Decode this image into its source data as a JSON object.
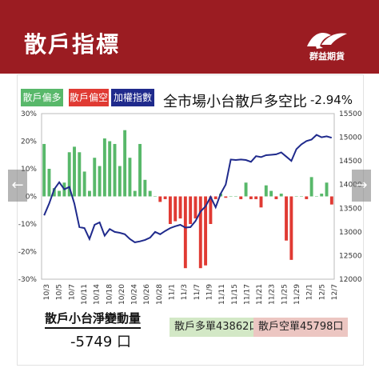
{
  "header": {
    "title": "散戶指標",
    "brand": "群益期貨"
  },
  "legend": {
    "long_label": "散戶偏多",
    "short_label": "散戶偏空",
    "index_label": "加權指數"
  },
  "chart_title": "全市場小台散戶多空比",
  "latest_ratio": "-2.94%",
  "net_change": {
    "label": "散戶小台淨變動量",
    "value": "-5749 口"
  },
  "positions": {
    "long": "散戶多單43862口",
    "short": "散戶空單45798口"
  },
  "colors": {
    "long": "#58b86a",
    "short": "#e03a33",
    "index": "#1f2a8c",
    "header": "#9b1c22"
  },
  "chart_data": {
    "type": "bar",
    "title": "全市場小台散戶多空比",
    "y_left": {
      "ylim": [
        -30,
        30
      ],
      "ticks": [
        "30%",
        "20%",
        "10%",
        "0%",
        "-10%",
        "-20%",
        "-30%"
      ]
    },
    "y_right": {
      "ylim": [
        12000,
        15500
      ],
      "ticks": [
        "15500",
        "15000",
        "14500",
        "14000",
        "13500",
        "13000",
        "12500",
        "12000"
      ]
    },
    "x_tick_labels": [
      "10/3",
      "10/5",
      "10/7",
      "10/11",
      "10/14",
      "10/18",
      "10/20",
      "10/24",
      "10/26",
      "10/28",
      "11/1",
      "11/3",
      "11/7",
      "11/9",
      "11/11",
      "11/15",
      "11/17",
      "11/21",
      "11/23",
      "11/25",
      "11/29",
      "12/1",
      "12/5",
      "12/7"
    ],
    "series": [
      {
        "name": "散戶偏多/散戶偏空",
        "type": "bar",
        "values": [
          19,
          10,
          3,
          2,
          5,
          16,
          18,
          16,
          9,
          2,
          14,
          11,
          21,
          20,
          19,
          11,
          24,
          14,
          2,
          19,
          6,
          2,
          0,
          -2,
          -1,
          -10,
          -9,
          -8,
          -26,
          -10,
          -8,
          -26,
          -25,
          -10,
          -1,
          1,
          -0.5,
          0,
          0,
          -1,
          5,
          -1,
          -1,
          -4,
          4,
          2,
          -1,
          1,
          -16,
          -23,
          0,
          0,
          -1,
          7,
          0,
          1,
          5,
          -2.94
        ]
      },
      {
        "name": "加權指數",
        "type": "line",
        "values": [
          13350,
          13600,
          13900,
          14050,
          13900,
          13950,
          13600,
          13100,
          13080,
          12850,
          13150,
          13200,
          12920,
          13060,
          13000,
          12980,
          12950,
          12850,
          12780,
          12800,
          12830,
          12880,
          13000,
          12950,
          13020,
          13080,
          13120,
          13150,
          13090,
          13100,
          13230,
          13430,
          13540,
          13740,
          13520,
          13810,
          14000,
          14530,
          14520,
          14530,
          14520,
          14480,
          14600,
          14580,
          14620,
          14630,
          14640,
          14680,
          14590,
          14500,
          14750,
          14850,
          14920,
          14950,
          15050,
          15000,
          15020,
          14990
        ]
      }
    ]
  }
}
